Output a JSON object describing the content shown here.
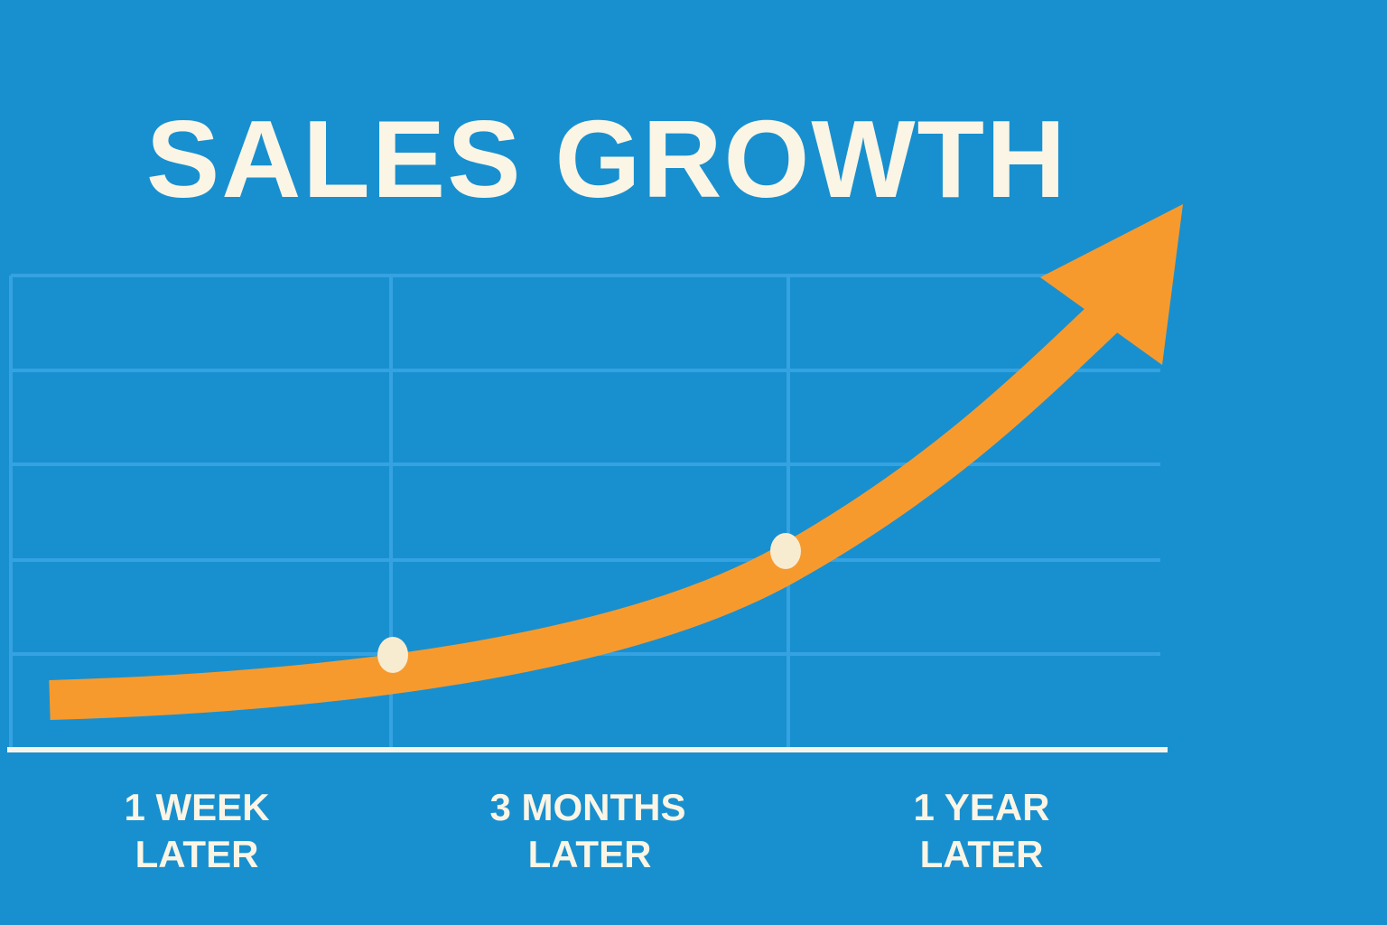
{
  "header": {
    "title": "SALES GROWTH"
  },
  "labels": [
    {
      "lines": [
        "1 WEEK",
        "LATER"
      ]
    },
    {
      "lines": [
        "3 MONTHS",
        "LATER"
      ]
    },
    {
      "lines": [
        "1 YEAR",
        "LATER"
      ]
    }
  ]
}
